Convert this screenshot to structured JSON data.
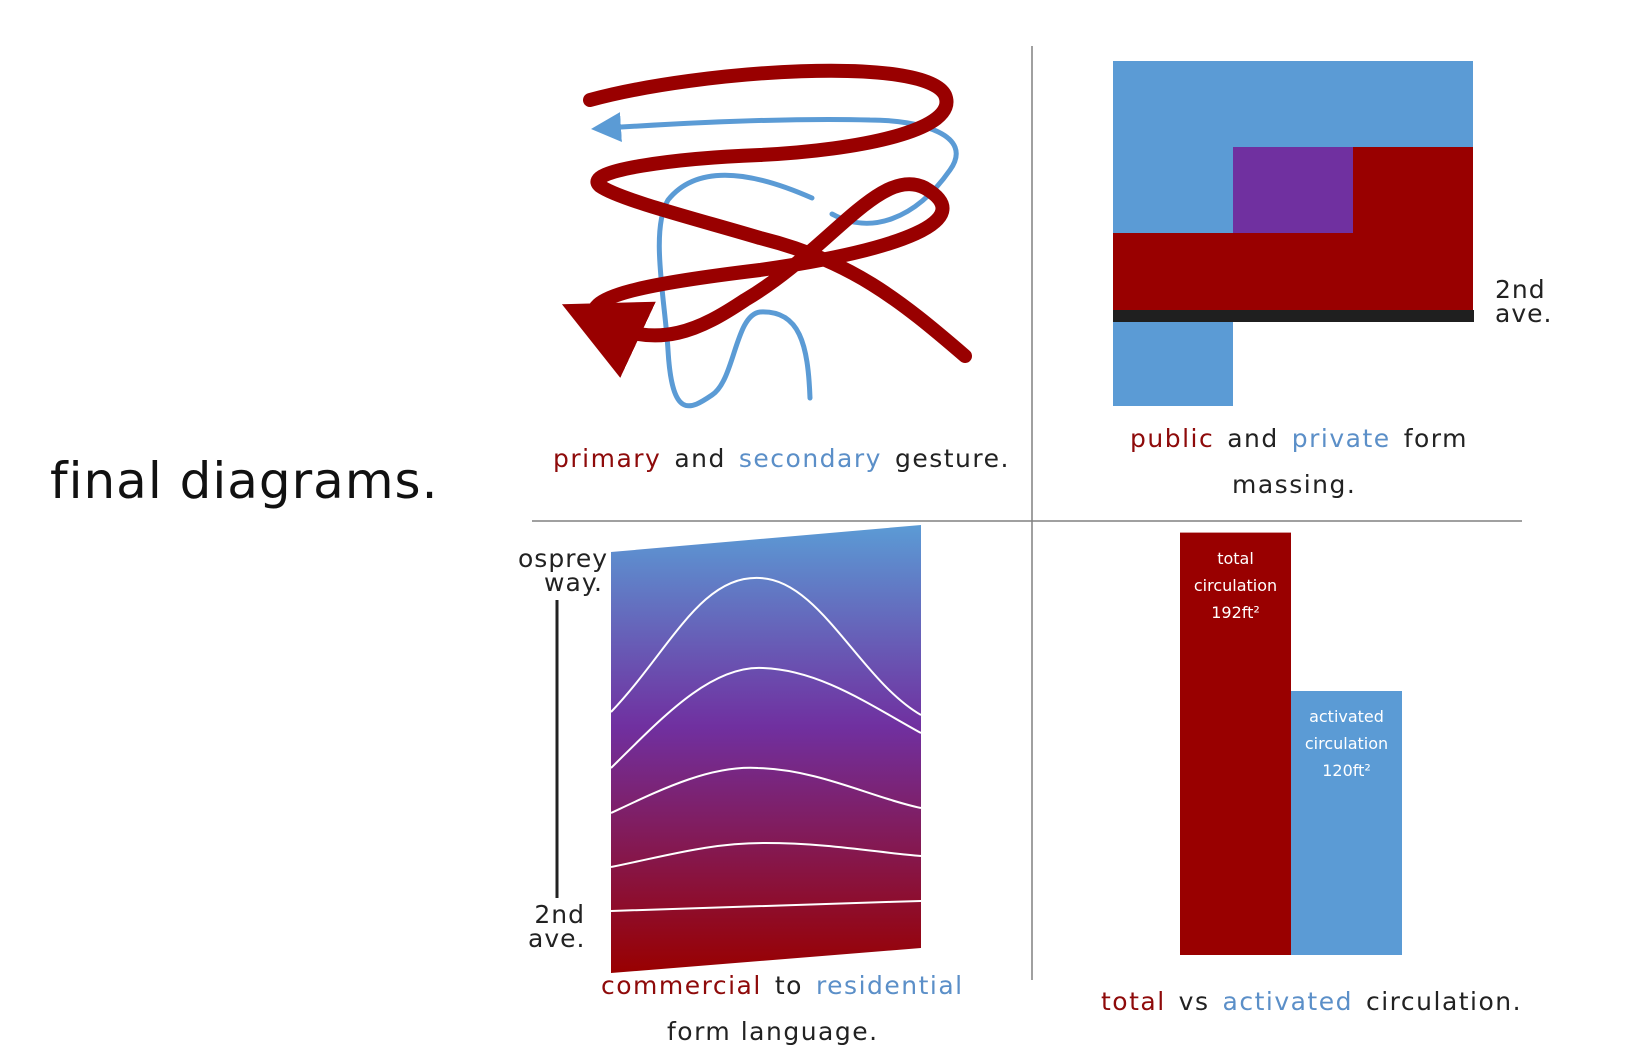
{
  "page_title": "final diagrams.",
  "colors": {
    "primary": "#990000",
    "secondary": "#5b9bd5",
    "purple": "#7030a0",
    "divider": "#808080"
  },
  "gesture": {
    "caption": {
      "primary": "primary",
      "and": "and",
      "secondary": "secondary",
      "rest": "gesture."
    }
  },
  "massing": {
    "caption": {
      "public": "public",
      "and": "and",
      "private": "private",
      "form": "form",
      "line2": "massing."
    },
    "street_label": {
      "line1": "2nd",
      "line2": "ave."
    }
  },
  "form_language": {
    "top_label": {
      "line1": "osprey",
      "line2": "way."
    },
    "bottom_label": {
      "line1": "2nd",
      "line2": "ave."
    },
    "caption": {
      "commercial": "commercial",
      "to": "to",
      "residential": "residential",
      "line2": "form language."
    }
  },
  "circulation": {
    "caption": {
      "total": "total",
      "vs": "vs",
      "activated": "activated",
      "rest": "circulation."
    },
    "bars": [
      {
        "name": "total-bar",
        "lines": [
          "total",
          "circulation",
          "192ft²"
        ],
        "value": 192,
        "color": "#990000"
      },
      {
        "name": "activated-bar",
        "lines": [
          "activated",
          "circulation",
          "120ft²"
        ],
        "value": 120,
        "color": "#5b9bd5"
      }
    ]
  }
}
